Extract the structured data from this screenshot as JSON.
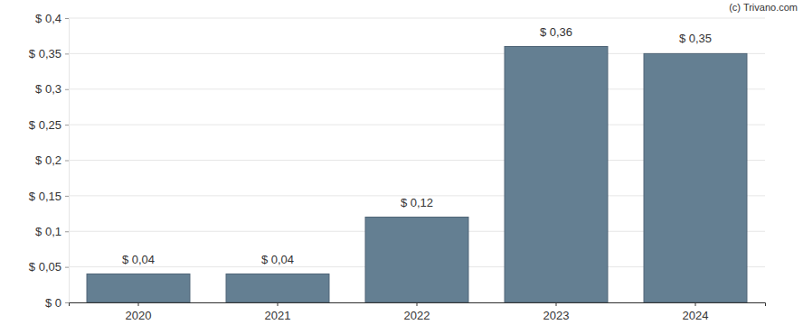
{
  "chart_data": {
    "type": "bar",
    "categories": [
      "2020",
      "2021",
      "2022",
      "2023",
      "2024"
    ],
    "values": [
      0.04,
      0.04,
      0.12,
      0.36,
      0.35
    ],
    "value_labels": [
      "$ 0,04",
      "$ 0,04",
      "$ 0,12",
      "$ 0,36",
      "$ 0,35"
    ],
    "data_labels": true,
    "color": "#647f92",
    "ylim": [
      0,
      0.4
    ],
    "yticks": [
      {
        "value": 0,
        "label": "$ 0"
      },
      {
        "value": 0.05,
        "label": "$ 0,05"
      },
      {
        "value": 0.1,
        "label": "$ 0,1"
      },
      {
        "value": 0.15,
        "label": "$ 0,15"
      },
      {
        "value": 0.2,
        "label": "$ 0,2"
      },
      {
        "value": 0.25,
        "label": "$ 0,25"
      },
      {
        "value": 0.3,
        "label": "$ 0,3"
      },
      {
        "value": 0.35,
        "label": "$ 0,35"
      },
      {
        "value": 0.4,
        "label": "$ 0,4"
      }
    ],
    "grid": true,
    "annotations": [
      "(c) Trivano.com"
    ]
  }
}
